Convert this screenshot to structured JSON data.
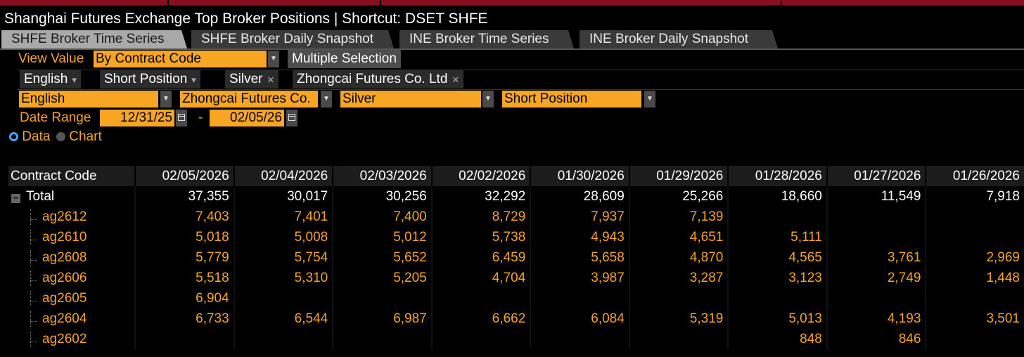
{
  "window": {
    "title": "Shanghai Futures Exchange Top Broker Positions | Shortcut: DSET SHFE",
    "accent_color": "#f6a623",
    "bar_color": "#8b0f1a"
  },
  "tabs": [
    {
      "label": "SHFE Broker Time Series",
      "active": true
    },
    {
      "label": "SHFE Broker Daily Snapshot",
      "active": false
    },
    {
      "label": "INE Broker Time Series",
      "active": false
    },
    {
      "label": "INE Broker Daily Snapshot",
      "active": false
    }
  ],
  "view": {
    "label": "View Value",
    "value": "By Contract Code",
    "multiple_selection": "Multiple Selection"
  },
  "chips": [
    {
      "label": "English",
      "kind": "dropdown"
    },
    {
      "label": "Short Position",
      "kind": "dropdown"
    },
    {
      "label": "Silver",
      "kind": "removable"
    },
    {
      "label": "Zhongcai Futures Co. Ltd",
      "kind": "removable"
    }
  ],
  "filters": {
    "language": "English",
    "broker": "Zhongcai Futures Co.",
    "commodity": "Silver",
    "position": "Short Position"
  },
  "date_range": {
    "label": "Date Range",
    "start": "12/31/25",
    "separator": "-",
    "end": "02/05/26"
  },
  "display_mode": {
    "options": [
      "Data",
      "Chart"
    ],
    "selected": "Data"
  },
  "table": {
    "first_header": "Contract Code",
    "columns": [
      "02/05/2026",
      "02/04/2026",
      "02/03/2026",
      "02/02/2026",
      "01/30/2026",
      "01/29/2026",
      "01/28/2026",
      "01/27/2026",
      "01/26/2026"
    ],
    "total": {
      "label": "Total",
      "values": [
        "37,355",
        "30,017",
        "30,256",
        "32,292",
        "28,609",
        "25,266",
        "18,660",
        "11,549",
        "7,918"
      ]
    },
    "rows": [
      {
        "code": "ag2612",
        "values": [
          "7,403",
          "7,401",
          "7,400",
          "8,729",
          "7,937",
          "7,139",
          "",
          "",
          ""
        ]
      },
      {
        "code": "ag2610",
        "values": [
          "5,018",
          "5,008",
          "5,012",
          "5,738",
          "4,943",
          "4,651",
          "5,111",
          "",
          ""
        ]
      },
      {
        "code": "ag2608",
        "values": [
          "5,779",
          "5,754",
          "5,652",
          "6,459",
          "5,658",
          "4,870",
          "4,565",
          "3,761",
          "2,969"
        ]
      },
      {
        "code": "ag2606",
        "values": [
          "5,518",
          "5,310",
          "5,205",
          "4,704",
          "3,987",
          "3,287",
          "3,123",
          "2,749",
          "1,448"
        ]
      },
      {
        "code": "ag2605",
        "values": [
          "6,904",
          "",
          "",
          "",
          "",
          "",
          "",
          "",
          ""
        ]
      },
      {
        "code": "ag2604",
        "values": [
          "6,733",
          "6,544",
          "6,987",
          "6,662",
          "6,084",
          "5,319",
          "5,013",
          "4,193",
          "3,501"
        ]
      },
      {
        "code": "ag2602",
        "values": [
          "",
          "",
          "",
          "",
          "",
          "",
          "848",
          "846",
          ""
        ]
      }
    ]
  }
}
